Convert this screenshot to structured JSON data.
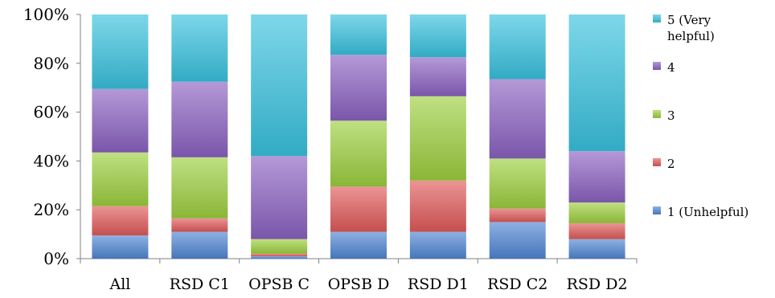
{
  "chart_data": {
    "type": "bar",
    "stacked": true,
    "percent": true,
    "categories": [
      "All",
      "RSD C1",
      "OPSB C",
      "OPSB D",
      "RSD D1",
      "RSD C2",
      "RSD D2"
    ],
    "series": [
      {
        "name": "1 (Unhelpful)",
        "color": "#4f86d3",
        "values": [
          9.5,
          11,
          1,
          11,
          11,
          15,
          8
        ]
      },
      {
        "name": "2",
        "color": "#e05a5a",
        "values": [
          12,
          5.5,
          1,
          18.5,
          21,
          5.5,
          6.5
        ]
      },
      {
        "name": "3",
        "color": "#9dcf3f",
        "values": [
          22,
          25,
          6,
          27,
          34.5,
          20.5,
          8.5
        ]
      },
      {
        "name": "4",
        "color": "#8b62c1",
        "values": [
          26,
          31,
          34,
          27,
          16,
          32.5,
          21
        ]
      },
      {
        "name": "5 (Very helpful)",
        "color": "#39c2df",
        "values": [
          30.5,
          27.5,
          58,
          16.5,
          17.5,
          26.5,
          56
        ]
      }
    ],
    "ylim": [
      0,
      100
    ],
    "yticks": [
      "0%",
      "20%",
      "40%",
      "60%",
      "80%",
      "100%"
    ],
    "legend_position": "right",
    "legend_lines": [
      [
        "5 (Very",
        "helpful)"
      ],
      [
        "4"
      ],
      [
        "3"
      ],
      [
        "2"
      ],
      [
        "1 (Unhelpful)"
      ]
    ]
  }
}
